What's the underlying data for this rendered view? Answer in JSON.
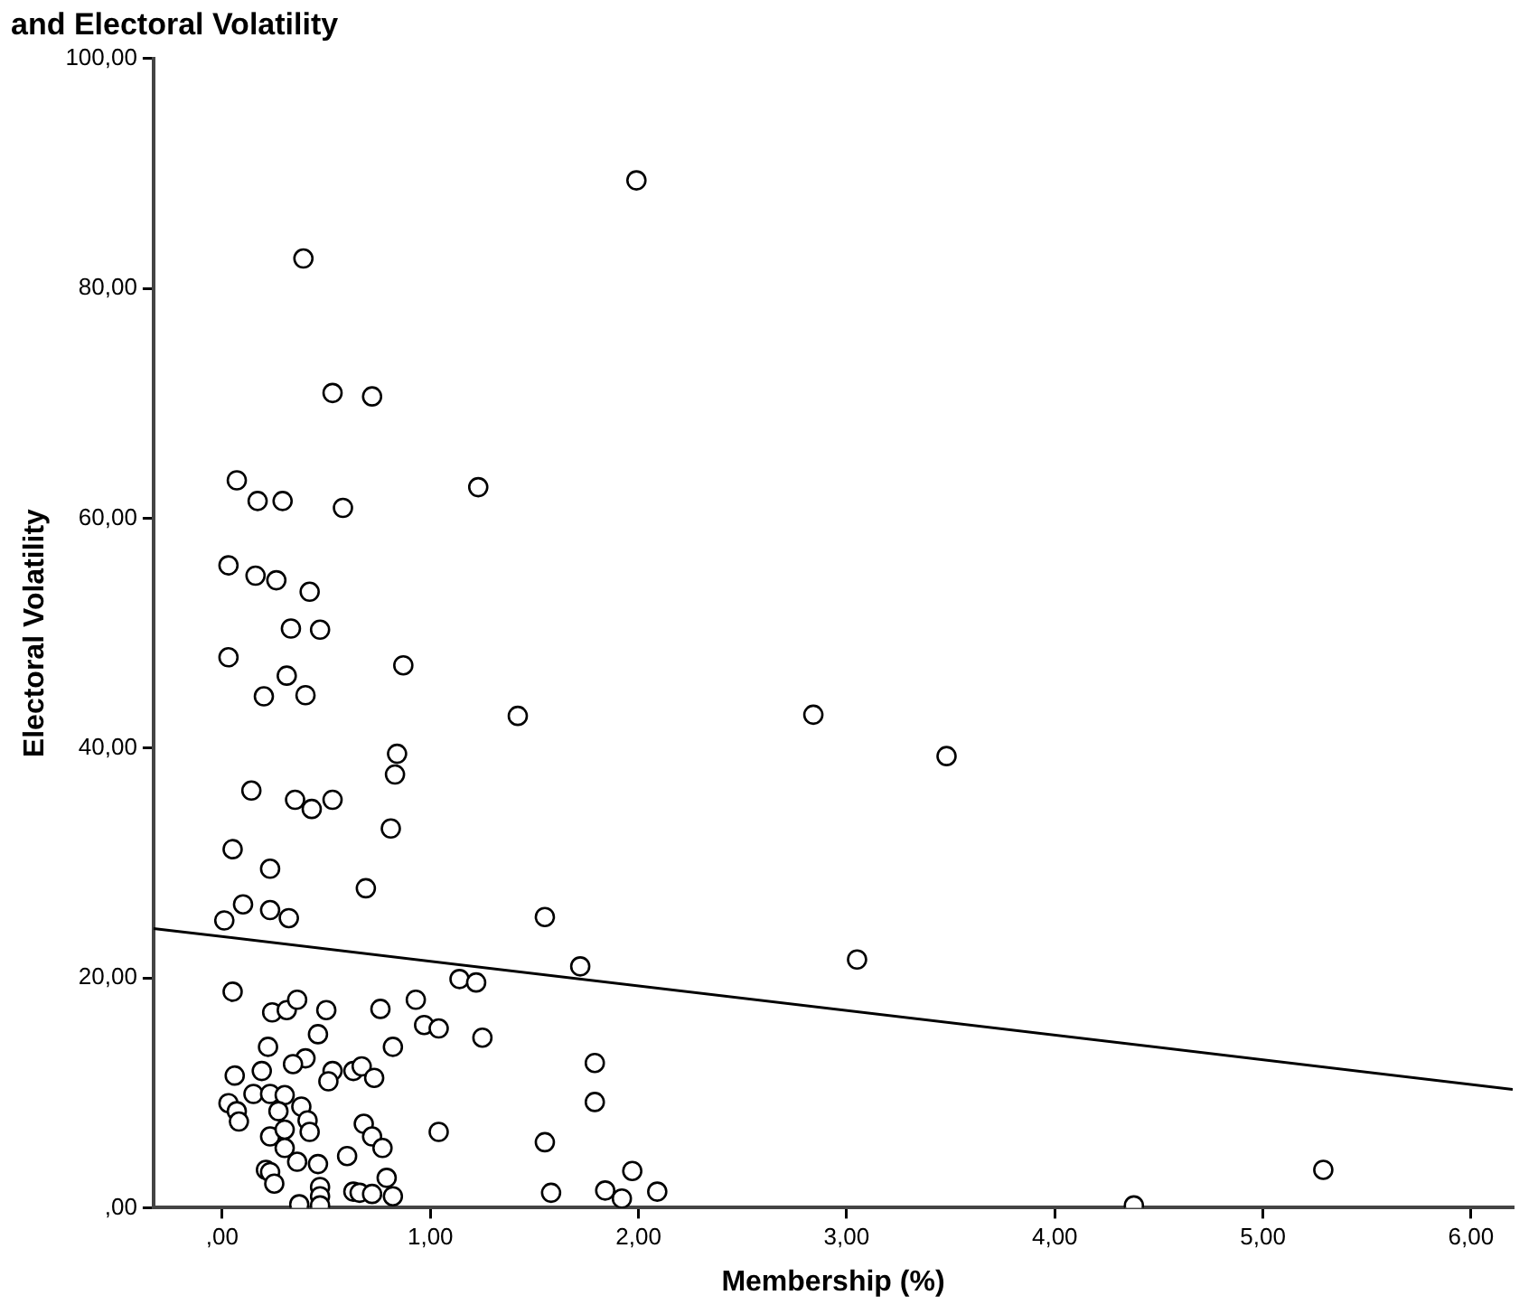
{
  "chart_data": {
    "type": "scatter",
    "title": "and Electoral Volatility",
    "xlabel": "Membership (%)",
    "ylabel": "Electoral Volatility",
    "xlim": [
      -0.33,
      6.2
    ],
    "ylim": [
      0,
      100
    ],
    "xticks": [
      {
        "value": 0,
        "label": ",00"
      },
      {
        "value": 1,
        "label": "1,00"
      },
      {
        "value": 2,
        "label": "2,00"
      },
      {
        "value": 3,
        "label": "3,00"
      },
      {
        "value": 4,
        "label": "4,00"
      },
      {
        "value": 5,
        "label": "5,00"
      },
      {
        "value": 6,
        "label": "6,00"
      }
    ],
    "yticks": [
      {
        "value": 0,
        "label": ",00"
      },
      {
        "value": 20,
        "label": "20,00"
      },
      {
        "value": 40,
        "label": "40,00"
      },
      {
        "value": 60,
        "label": "60,00"
      },
      {
        "value": 80,
        "label": "80,00"
      },
      {
        "value": 100,
        "label": "100,00"
      }
    ],
    "grid": false,
    "legend": false,
    "marker": "circle",
    "series": [
      {
        "color": "#000000",
        "x": [
          1.99,
          1.42,
          2.84,
          3.48,
          1.55,
          1.72,
          3.05,
          1.79,
          1.79,
          1.55,
          1.58,
          1.84,
          1.92,
          1.97,
          2.09,
          4.38,
          5.29,
          0.39,
          0.53,
          0.72,
          0.07,
          0.17,
          0.29,
          0.58,
          1.23,
          0.03,
          0.16,
          0.26,
          0.42,
          0.33,
          0.47,
          0.03,
          0.87,
          0.31,
          0.2,
          0.4,
          0.84,
          0.83,
          0.14,
          0.35,
          0.43,
          0.53,
          0.81,
          0.05,
          0.23,
          0.69,
          0.01,
          0.1,
          0.23,
          0.32,
          1.14,
          1.22,
          0.05,
          0.24,
          0.31,
          0.36,
          0.5,
          0.76,
          0.93,
          0.97,
          1.04,
          1.25,
          0.46,
          0.22,
          0.82,
          0.4,
          0.34,
          0.19,
          0.06,
          0.53,
          0.51,
          0.63,
          0.67,
          0.73,
          0.03,
          0.07,
          0.08,
          0.15,
          0.23,
          0.3,
          0.27,
          0.38,
          0.41,
          0.42,
          0.23,
          0.3,
          0.3,
          0.68,
          0.72,
          0.77,
          1.04,
          0.36,
          0.46,
          0.6,
          0.21,
          0.23,
          0.25,
          0.47,
          0.47,
          0.37,
          0.47,
          0.63,
          0.66,
          0.72,
          0.79,
          0.82
        ],
        "values": [
          89.4,
          42.8,
          42.9,
          39.3,
          25.3,
          21.0,
          21.6,
          12.6,
          9.2,
          5.7,
          1.3,
          1.5,
          0.8,
          3.2,
          1.4,
          0.2,
          3.3,
          82.6,
          70.9,
          70.6,
          63.3,
          61.5,
          61.5,
          60.9,
          62.7,
          55.9,
          55.0,
          54.6,
          53.6,
          50.4,
          50.3,
          47.9,
          47.2,
          46.3,
          44.5,
          44.6,
          39.5,
          37.7,
          36.3,
          35.5,
          34.7,
          35.5,
          33.0,
          31.2,
          29.5,
          27.8,
          25.0,
          26.4,
          25.9,
          25.2,
          19.9,
          19.6,
          18.8,
          17.0,
          17.2,
          18.1,
          17.2,
          17.3,
          18.1,
          15.9,
          15.6,
          14.8,
          15.1,
          14.0,
          14.0,
          13.0,
          12.5,
          11.9,
          11.5,
          11.9,
          11.0,
          11.9,
          12.3,
          11.3,
          9.1,
          8.4,
          7.5,
          9.9,
          9.9,
          9.8,
          8.4,
          8.8,
          7.6,
          6.6,
          6.2,
          6.8,
          5.2,
          7.3,
          6.2,
          5.2,
          6.6,
          4.0,
          3.8,
          4.5,
          3.3,
          3.1,
          2.1,
          1.8,
          1.0,
          0.3,
          0.2,
          1.4,
          1.3,
          1.2,
          2.6,
          1.0
        ]
      },
      {
        "type": "line",
        "color": "#000000",
        "marker": "none",
        "x": [
          -0.33,
          6.2
        ],
        "values": [
          24.3,
          10.3
        ]
      }
    ]
  }
}
